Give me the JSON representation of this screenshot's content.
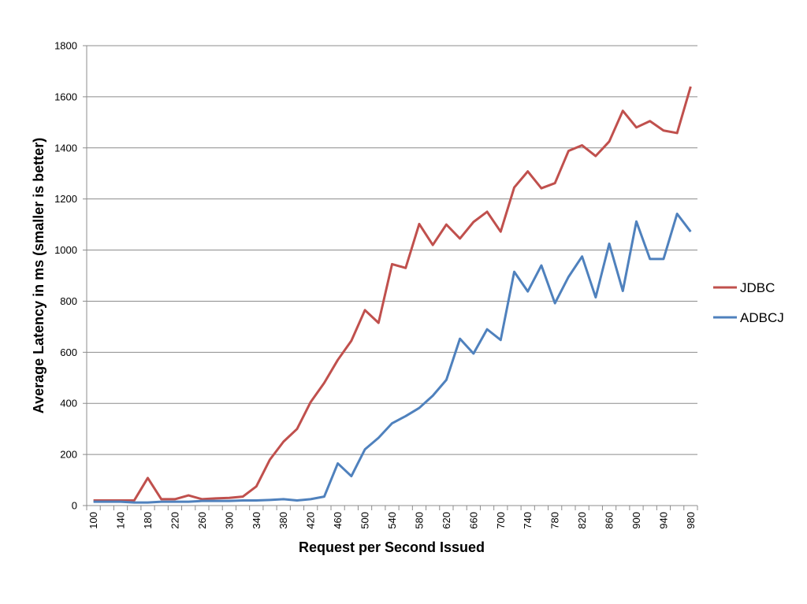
{
  "chart_data": {
    "type": "line",
    "title": "",
    "xlabel": "Request per Second Issued",
    "ylabel": "Average Latency in ms (smaller is better)",
    "ylim": [
      0,
      1800
    ],
    "yticks": [
      0,
      200,
      400,
      600,
      800,
      1000,
      1200,
      1400,
      1600,
      1800
    ],
    "x": [
      100,
      120,
      140,
      160,
      180,
      200,
      220,
      240,
      260,
      280,
      300,
      320,
      340,
      360,
      380,
      400,
      420,
      440,
      460,
      480,
      500,
      520,
      540,
      560,
      580,
      600,
      620,
      640,
      660,
      680,
      700,
      720,
      740,
      760,
      780,
      800,
      820,
      840,
      860,
      880,
      900,
      920,
      940,
      960,
      980
    ],
    "xtick_labels": [
      "100",
      "140",
      "180",
      "220",
      "260",
      "300",
      "340",
      "380",
      "420",
      "460",
      "500",
      "540",
      "580",
      "620",
      "660",
      "700",
      "740",
      "780",
      "820",
      "860",
      "900",
      "940",
      "980"
    ],
    "grid": "horizontal",
    "legend_position": "right",
    "series": [
      {
        "name": "JDBC",
        "color": "#C0504D",
        "values": [
          20,
          20,
          20,
          20,
          108,
          25,
          25,
          40,
          25,
          28,
          30,
          35,
          75,
          180,
          250,
          300,
          405,
          480,
          570,
          645,
          765,
          715,
          945,
          930,
          1102,
          1020,
          1100,
          1045,
          1110,
          1150,
          1072,
          1245,
          1308,
          1242,
          1262,
          1388,
          1410,
          1368,
          1425,
          1545,
          1480,
          1505,
          1468,
          1458,
          1640
        ]
      },
      {
        "name": "ADBCJ",
        "color": "#4F81BD",
        "values": [
          15,
          15,
          15,
          12,
          12,
          15,
          15,
          15,
          18,
          18,
          18,
          20,
          20,
          22,
          25,
          20,
          25,
          35,
          165,
          115,
          220,
          265,
          322,
          350,
          382,
          430,
          492,
          653,
          595,
          690,
          648,
          915,
          838,
          940,
          792,
          895,
          975,
          815,
          1025,
          840,
          1112,
          965,
          965,
          1142,
          1072
        ]
      }
    ]
  }
}
